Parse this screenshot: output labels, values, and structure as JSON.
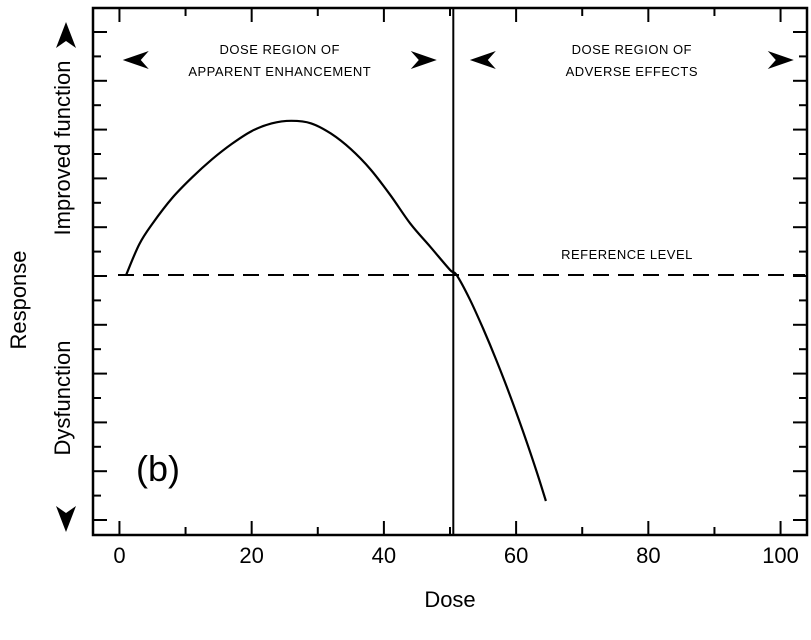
{
  "chart_data": {
    "type": "line",
    "title": "",
    "panel_label": "(b)",
    "xlabel": "Dose",
    "ylabel": "Response",
    "ylabel_upper": "Improved function",
    "ylabel_lower": "Dysfunction",
    "xlim": [
      -4,
      104
    ],
    "ylim": [
      -1.0,
      1.0
    ],
    "x_ticks": [
      0,
      20,
      40,
      60,
      80,
      100
    ],
    "x_tick_labels": [
      "0",
      "20",
      "40",
      "60",
      "80",
      "100"
    ],
    "grid": false,
    "series": [
      {
        "x": [
          1,
          3,
          5,
          8,
          11,
          14,
          17,
          20,
          23,
          26,
          29,
          32,
          35,
          38,
          41,
          44,
          47,
          50,
          51,
          53,
          55,
          57,
          59,
          61,
          63,
          64.5
        ],
        "y": [
          0,
          0.12,
          0.2,
          0.3,
          0.38,
          0.45,
          0.51,
          0.56,
          0.59,
          0.6,
          0.59,
          0.55,
          0.49,
          0.41,
          0.31,
          0.2,
          0.11,
          0.02,
          0,
          -0.1,
          -0.22,
          -0.35,
          -0.49,
          -0.64,
          -0.8,
          -0.93
        ]
      }
    ],
    "reference_level": {
      "y": 0,
      "label": "REFERENCE LEVEL",
      "style": "dashed"
    },
    "divider": {
      "x": 50.5
    },
    "annotations": [
      {
        "line1": "DOSE REGION OF",
        "line2": "APPARENT ENHANCEMENT",
        "x_start": 0.5,
        "x_end": 48
      },
      {
        "line1": "DOSE REGION OF",
        "line2": "ADVERSE EFFECTS",
        "x_start": 53,
        "x_end": 102
      }
    ]
  }
}
